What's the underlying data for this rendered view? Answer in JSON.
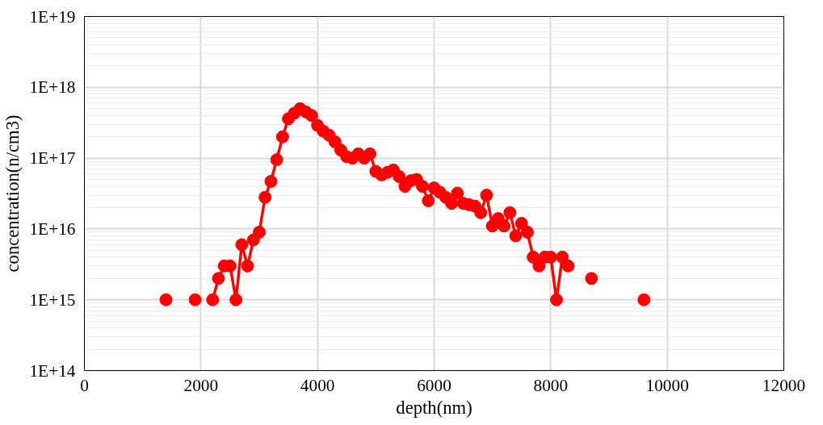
{
  "chart_data": {
    "type": "line",
    "xlabel": "depth(nm)",
    "ylabel": "concentration(n/cm3)",
    "log": "y",
    "grid": true,
    "marker": "circle",
    "line_style": "solid",
    "xlim": [
      0,
      12000
    ],
    "xticks": [
      0,
      2000,
      4000,
      6000,
      8000,
      10000,
      12000
    ],
    "ylim": [
      100000000000000.0,
      1e+19
    ],
    "yticks": [
      {
        "value": 100000000000000.0,
        "label": "1E+14"
      },
      {
        "value": 1000000000000000.0,
        "label": "1E+15"
      },
      {
        "value": 1e+16,
        "label": "1E+16"
      },
      {
        "value": 1e+17,
        "label": "1E+17"
      },
      {
        "value": 1e+18,
        "label": "1E+18"
      },
      {
        "value": 1e+19,
        "label": "1E+19"
      }
    ],
    "series": [
      {
        "color": "#ff0000",
        "x": [
          1400,
          1600,
          1900,
          2000,
          2200,
          2300,
          2400,
          2500,
          2600,
          2700,
          2800,
          2900,
          3000,
          3100,
          3200,
          3300,
          3400,
          3500,
          3600,
          3700,
          3800,
          3900,
          4000,
          4100,
          4200,
          4300,
          4400,
          4500,
          4600,
          4700,
          4800,
          4900,
          5000,
          5100,
          5200,
          5300,
          5400,
          5500,
          5600,
          5700,
          5800,
          5900,
          6000,
          6100,
          6200,
          6300,
          6400,
          6500,
          6600,
          6700,
          6800,
          6900,
          7000,
          7100,
          7200,
          7300,
          7400,
          7500,
          7600,
          7700,
          7800,
          7900,
          8000,
          8100,
          8200,
          8300,
          8500,
          8700,
          9000,
          9600
        ],
        "values": [
          1000000000000000.0,
          null,
          1000000000000000.0,
          null,
          1000000000000000.0,
          2000000000000000.0,
          3000000000000000.0,
          3000000000000000.0,
          1000000000000000.0,
          6000000000000000.0,
          3000000000000000.0,
          7000000000000000.0,
          9000000000000000.0,
          2.8e+16,
          4.7e+16,
          9.5e+16,
          2e+17,
          3.6e+17,
          4.3e+17,
          5e+17,
          4.5e+17,
          4e+17,
          2.9e+17,
          2.4e+17,
          2.1e+17,
          1.7e+17,
          1.3e+17,
          1.05e+17,
          1e+17,
          1.15e+17,
          1e+17,
          1.15e+17,
          6.5e+16,
          5.8e+16,
          6.3e+16,
          6.8e+16,
          5.5e+16,
          4e+16,
          4.8e+16,
          5e+16,
          4e+16,
          2.5e+16,
          3.8e+16,
          3.3e+16,
          2.8e+16,
          2.3e+16,
          3.2e+16,
          2.3e+16,
          2.2e+16,
          2.1e+16,
          1.7e+16,
          3e+16,
          1.1e+16,
          1.4e+16,
          1.1e+16,
          1.7e+16,
          8000000000000000.0,
          1.2e+16,
          9000000000000000.0,
          4000000000000000.0,
          3000000000000000.0,
          4000000000000000.0,
          4000000000000000.0,
          1000000000000000.0,
          4000000000000000.0,
          3000000000000000.0,
          null,
          2000000000000000.0,
          null,
          1000000000000000.0
        ]
      }
    ]
  }
}
